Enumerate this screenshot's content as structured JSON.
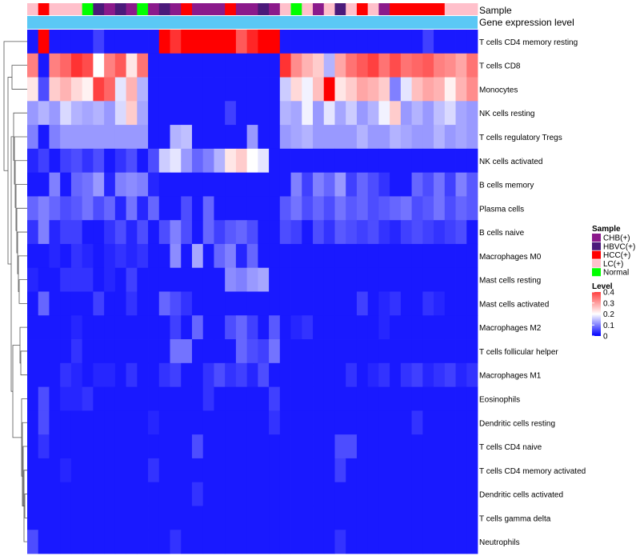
{
  "chart_data": {
    "type": "heatmap",
    "title": "",
    "annotation_labels": [
      "Sample",
      "Gene expression level"
    ],
    "rows": [
      "T cells CD4 memory resting",
      "T cells CD8",
      "Monocytes",
      "NK cells resting",
      "T cells regulatory  Tregs",
      "NK cells activated",
      "B cells memory",
      "Plasma cells",
      "B cells naive",
      "Macrophages M0",
      "Mast cells resting",
      "Mast cells activated",
      "Macrophages M2",
      "T cells follicular helper",
      "Macrophages M1",
      "Eosinophils",
      "Dendritic cells resting",
      "T cells CD4 naive",
      "T cells CD4 memory activated",
      "Dendritic cells activated",
      "T cells gamma delta",
      "Neutrophils"
    ],
    "sample_groups": [
      "LC",
      "HCC",
      "LC",
      "LC",
      "LC",
      "Normal",
      "HBVC",
      "CHB",
      "HBVC",
      "CHB",
      "Normal",
      "CHB",
      "HBVC",
      "CHB",
      "HCC",
      "CHB",
      "CHB",
      "CHB",
      "HCC",
      "CHB",
      "CHB",
      "HBVC",
      "CHB",
      "LC",
      "Normal",
      "LC",
      "CHB",
      "LC",
      "HBVC",
      "LC",
      "HCC",
      "LC",
      "CHB",
      "HCC",
      "HCC",
      "HCC",
      "HCC",
      "HCC",
      "LC",
      "LC",
      "LC"
    ],
    "sample_group_colors": {
      "CHB": "#8b1a8b",
      "HBVC": "#4b1a7a",
      "HCC": "#ff0000",
      "LC": "#ffc0cb",
      "Normal": "#00ff00"
    },
    "legends": {
      "sample": {
        "title": "Sample",
        "items": [
          {
            "label": "CHB(+)",
            "color": "#8b1a8b"
          },
          {
            "label": "HBVC(+)",
            "color": "#4b1a7a"
          },
          {
            "label": "HCC(+)",
            "color": "#ff0000"
          },
          {
            "label": "LC(+)",
            "color": "#ffc0cb"
          },
          {
            "label": "Normal",
            "color": "#00ff00"
          }
        ]
      },
      "level": {
        "title": "Level",
        "ticks": [
          "0.4",
          "0.3",
          "0.2",
          "0.1",
          "0"
        ],
        "tick_values": [
          0.4,
          0.3,
          0.2,
          0.1,
          0
        ],
        "range": [
          0,
          0.4
        ],
        "color_low": "#0000ff",
        "color_mid": "#ffffff",
        "color_high": "#ff0000",
        "mid_value": 0.2
      }
    },
    "values": [
      [
        0.02,
        0.45,
        0.02,
        0.02,
        0.02,
        0.02,
        0.05,
        0.02,
        0.02,
        0.02,
        0.02,
        0.02,
        0.4,
        0.36,
        0.42,
        0.42,
        0.42,
        0.42,
        0.42,
        0.33,
        0.37,
        0.43,
        0.42,
        0.02,
        0.02,
        0.02,
        0.02,
        0.02,
        0.02,
        0.02,
        0.02,
        0.02,
        0.02,
        0.02,
        0.02,
        0.02,
        0.05,
        0.02,
        0.02,
        0.02,
        0.02
      ],
      [
        0.3,
        0.02,
        0.3,
        0.32,
        0.36,
        0.34,
        0.2,
        0.3,
        0.33,
        0.22,
        0.31,
        0.02,
        0.02,
        0.02,
        0.02,
        0.02,
        0.02,
        0.02,
        0.02,
        0.02,
        0.02,
        0.02,
        0.02,
        0.36,
        0.29,
        0.26,
        0.24,
        0.14,
        0.27,
        0.31,
        0.33,
        0.35,
        0.31,
        0.34,
        0.31,
        0.32,
        0.33,
        0.3,
        0.29,
        0.27,
        0.31
      ],
      [
        0.22,
        0.06,
        0.24,
        0.26,
        0.23,
        0.21,
        0.35,
        0.32,
        0.18,
        0.26,
        0.14,
        0.02,
        0.02,
        0.02,
        0.02,
        0.02,
        0.02,
        0.02,
        0.02,
        0.02,
        0.02,
        0.02,
        0.02,
        0.16,
        0.23,
        0.19,
        0.25,
        0.42,
        0.22,
        0.24,
        0.27,
        0.26,
        0.24,
        0.1,
        0.18,
        0.25,
        0.27,
        0.26,
        0.21,
        0.26,
        0.29
      ],
      [
        0.12,
        0.14,
        0.12,
        0.17,
        0.14,
        0.13,
        0.14,
        0.12,
        0.17,
        0.24,
        0.13,
        0.02,
        0.02,
        0.02,
        0.02,
        0.02,
        0.02,
        0.02,
        0.05,
        0.02,
        0.02,
        0.02,
        0.02,
        0.14,
        0.13,
        0.19,
        0.12,
        0.18,
        0.13,
        0.16,
        0.12,
        0.14,
        0.19,
        0.24,
        0.12,
        0.14,
        0.12,
        0.15,
        0.17,
        0.13,
        0.12
      ],
      [
        0.1,
        0.02,
        0.1,
        0.12,
        0.12,
        0.12,
        0.12,
        0.12,
        0.12,
        0.12,
        0.12,
        0.02,
        0.02,
        0.14,
        0.15,
        0.02,
        0.02,
        0.02,
        0.02,
        0.02,
        0.12,
        0.02,
        0.02,
        0.12,
        0.13,
        0.14,
        0.12,
        0.12,
        0.12,
        0.12,
        0.14,
        0.12,
        0.12,
        0.14,
        0.13,
        0.12,
        0.12,
        0.14,
        0.12,
        0.13,
        0.12
      ],
      [
        0.03,
        0.05,
        0.02,
        0.05,
        0.06,
        0.04,
        0.06,
        0.02,
        0.04,
        0.06,
        0.02,
        0.06,
        0.16,
        0.18,
        0.12,
        0.08,
        0.1,
        0.14,
        0.22,
        0.24,
        0.2,
        0.18,
        0.02,
        0.02,
        0.02,
        0.02,
        0.02,
        0.02,
        0.02,
        0.02,
        0.02,
        0.02,
        0.02,
        0.02,
        0.02,
        0.02,
        0.02,
        0.02,
        0.02,
        0.02,
        0.02
      ],
      [
        0.02,
        0.02,
        0.1,
        0.02,
        0.08,
        0.09,
        0.12,
        0.03,
        0.1,
        0.11,
        0.1,
        0.03,
        0.02,
        0.02,
        0.02,
        0.02,
        0.02,
        0.02,
        0.02,
        0.02,
        0.02,
        0.02,
        0.02,
        0.02,
        0.1,
        0.05,
        0.1,
        0.08,
        0.12,
        0.05,
        0.08,
        0.06,
        0.04,
        0.02,
        0.02,
        0.08,
        0.06,
        0.09,
        0.05,
        0.1,
        0.07
      ],
      [
        0.08,
        0.1,
        0.08,
        0.06,
        0.07,
        0.09,
        0.06,
        0.08,
        0.03,
        0.09,
        0.03,
        0.08,
        0.02,
        0.02,
        0.06,
        0.02,
        0.08,
        0.02,
        0.02,
        0.02,
        0.02,
        0.02,
        0.02,
        0.07,
        0.09,
        0.06,
        0.08,
        0.06,
        0.09,
        0.07,
        0.08,
        0.06,
        0.07,
        0.08,
        0.09,
        0.06,
        0.07,
        0.09,
        0.06,
        0.08,
        0.07
      ],
      [
        0.04,
        0.1,
        0.03,
        0.05,
        0.05,
        0.02,
        0.02,
        0.04,
        0.06,
        0.03,
        0.06,
        0.02,
        0.06,
        0.1,
        0.06,
        0.02,
        0.08,
        0.05,
        0.07,
        0.08,
        0.06,
        0.02,
        0.02,
        0.06,
        0.05,
        0.02,
        0.06,
        0.04,
        0.07,
        0.06,
        0.05,
        0.06,
        0.04,
        0.03,
        0.05,
        0.06,
        0.05,
        0.04,
        0.05,
        0.06,
        0.02
      ],
      [
        0.02,
        0.02,
        0.03,
        0.02,
        0.04,
        0.03,
        0.02,
        0.03,
        0.04,
        0.03,
        0.04,
        0.02,
        0.02,
        0.11,
        0.02,
        0.13,
        0.02,
        0.08,
        0.1,
        0.03,
        0.08,
        0.02,
        0.02,
        0.02,
        0.02,
        0.02,
        0.02,
        0.02,
        0.02,
        0.02,
        0.02,
        0.02,
        0.02,
        0.02,
        0.02,
        0.02,
        0.02,
        0.02,
        0.02,
        0.02,
        0.02
      ],
      [
        0.03,
        0.02,
        0.02,
        0.04,
        0.04,
        0.04,
        0.02,
        0.03,
        0.02,
        0.05,
        0.02,
        0.02,
        0.02,
        0.02,
        0.02,
        0.02,
        0.02,
        0.02,
        0.11,
        0.1,
        0.12,
        0.13,
        0.02,
        0.02,
        0.02,
        0.02,
        0.02,
        0.02,
        0.02,
        0.02,
        0.02,
        0.02,
        0.02,
        0.02,
        0.02,
        0.02,
        0.02,
        0.02,
        0.02,
        0.02,
        0.02
      ],
      [
        0.02,
        0.08,
        0.02,
        0.02,
        0.02,
        0.02,
        0.05,
        0.02,
        0.02,
        0.04,
        0.02,
        0.02,
        0.08,
        0.06,
        0.04,
        0.02,
        0.02,
        0.02,
        0.02,
        0.02,
        0.02,
        0.02,
        0.02,
        0.02,
        0.02,
        0.02,
        0.02,
        0.02,
        0.02,
        0.02,
        0.05,
        0.02,
        0.03,
        0.04,
        0.02,
        0.02,
        0.04,
        0.03,
        0.02,
        0.02,
        0.02
      ],
      [
        0.02,
        0.02,
        0.02,
        0.02,
        0.03,
        0.02,
        0.02,
        0.02,
        0.02,
        0.02,
        0.02,
        0.02,
        0.02,
        0.05,
        0.02,
        0.08,
        0.02,
        0.02,
        0.06,
        0.08,
        0.05,
        0.02,
        0.07,
        0.02,
        0.03,
        0.04,
        0.02,
        0.02,
        0.02,
        0.02,
        0.02,
        0.02,
        0.03,
        0.02,
        0.02,
        0.02,
        0.02,
        0.02,
        0.02,
        0.02,
        0.02
      ],
      [
        0.02,
        0.02,
        0.02,
        0.02,
        0.04,
        0.02,
        0.02,
        0.02,
        0.02,
        0.02,
        0.02,
        0.02,
        0.02,
        0.09,
        0.09,
        0.02,
        0.02,
        0.02,
        0.02,
        0.08,
        0.06,
        0.05,
        0.09,
        0.02,
        0.02,
        0.02,
        0.02,
        0.02,
        0.02,
        0.02,
        0.02,
        0.02,
        0.02,
        0.02,
        0.02,
        0.02,
        0.02,
        0.02,
        0.02,
        0.02,
        0.02
      ],
      [
        0.02,
        0.02,
        0.02,
        0.04,
        0.03,
        0.02,
        0.03,
        0.03,
        0.02,
        0.04,
        0.02,
        0.02,
        0.04,
        0.05,
        0.02,
        0.02,
        0.04,
        0.06,
        0.04,
        0.05,
        0.03,
        0.06,
        0.02,
        0.02,
        0.02,
        0.02,
        0.02,
        0.02,
        0.02,
        0.04,
        0.02,
        0.03,
        0.04,
        0.02,
        0.04,
        0.05,
        0.03,
        0.04,
        0.05,
        0.03,
        0.04
      ],
      [
        0.02,
        0.06,
        0.02,
        0.03,
        0.03,
        0.04,
        0.02,
        0.02,
        0.02,
        0.02,
        0.02,
        0.02,
        0.02,
        0.02,
        0.02,
        0.02,
        0.04,
        0.02,
        0.02,
        0.02,
        0.02,
        0.02,
        0.05,
        0.02,
        0.02,
        0.02,
        0.02,
        0.02,
        0.02,
        0.02,
        0.02,
        0.02,
        0.02,
        0.02,
        0.02,
        0.02,
        0.02,
        0.02,
        0.02,
        0.02,
        0.02
      ],
      [
        0.02,
        0.06,
        0.02,
        0.02,
        0.02,
        0.02,
        0.02,
        0.02,
        0.02,
        0.02,
        0.02,
        0.03,
        0.02,
        0.02,
        0.02,
        0.02,
        0.02,
        0.02,
        0.02,
        0.02,
        0.02,
        0.02,
        0.04,
        0.02,
        0.02,
        0.02,
        0.02,
        0.02,
        0.02,
        0.02,
        0.02,
        0.02,
        0.02,
        0.02,
        0.02,
        0.04,
        0.02,
        0.02,
        0.02,
        0.02,
        0.02
      ],
      [
        0.02,
        0.04,
        0.02,
        0.02,
        0.02,
        0.02,
        0.02,
        0.02,
        0.02,
        0.02,
        0.02,
        0.02,
        0.02,
        0.02,
        0.02,
        0.06,
        0.02,
        0.02,
        0.02,
        0.02,
        0.02,
        0.02,
        0.02,
        0.02,
        0.02,
        0.02,
        0.02,
        0.02,
        0.06,
        0.06,
        0.02,
        0.02,
        0.02,
        0.02,
        0.02,
        0.02,
        0.02,
        0.02,
        0.02,
        0.02,
        0.02
      ],
      [
        0.02,
        0.02,
        0.02,
        0.03,
        0.02,
        0.02,
        0.02,
        0.02,
        0.02,
        0.02,
        0.02,
        0.04,
        0.02,
        0.02,
        0.02,
        0.02,
        0.02,
        0.02,
        0.02,
        0.02,
        0.02,
        0.02,
        0.02,
        0.02,
        0.02,
        0.02,
        0.02,
        0.02,
        0.05,
        0.02,
        0.02,
        0.02,
        0.02,
        0.02,
        0.02,
        0.02,
        0.02,
        0.02,
        0.02,
        0.02,
        0.02
      ],
      [
        0.02,
        0.02,
        0.02,
        0.02,
        0.02,
        0.02,
        0.02,
        0.02,
        0.02,
        0.02,
        0.02,
        0.02,
        0.02,
        0.02,
        0.02,
        0.04,
        0.02,
        0.02,
        0.02,
        0.02,
        0.02,
        0.02,
        0.02,
        0.02,
        0.02,
        0.02,
        0.02,
        0.02,
        0.02,
        0.02,
        0.02,
        0.02,
        0.02,
        0.02,
        0.02,
        0.02,
        0.02,
        0.02,
        0.02,
        0.02,
        0.02
      ],
      [
        0.02,
        0.02,
        0.02,
        0.02,
        0.02,
        0.02,
        0.02,
        0.02,
        0.02,
        0.02,
        0.02,
        0.02,
        0.02,
        0.02,
        0.02,
        0.02,
        0.02,
        0.02,
        0.02,
        0.02,
        0.02,
        0.02,
        0.02,
        0.02,
        0.02,
        0.02,
        0.02,
        0.02,
        0.02,
        0.02,
        0.02,
        0.02,
        0.02,
        0.02,
        0.02,
        0.02,
        0.02,
        0.02,
        0.02,
        0.02,
        0.02
      ],
      [
        0.06,
        0.02,
        0.02,
        0.02,
        0.02,
        0.02,
        0.02,
        0.02,
        0.02,
        0.02,
        0.02,
        0.02,
        0.02,
        0.04,
        0.02,
        0.02,
        0.02,
        0.02,
        0.02,
        0.02,
        0.02,
        0.02,
        0.02,
        0.02,
        0.02,
        0.02,
        0.02,
        0.02,
        0.04,
        0.02,
        0.02,
        0.02,
        0.02,
        0.02,
        0.02,
        0.02,
        0.02,
        0.02,
        0.02,
        0.02,
        0.02
      ]
    ]
  }
}
